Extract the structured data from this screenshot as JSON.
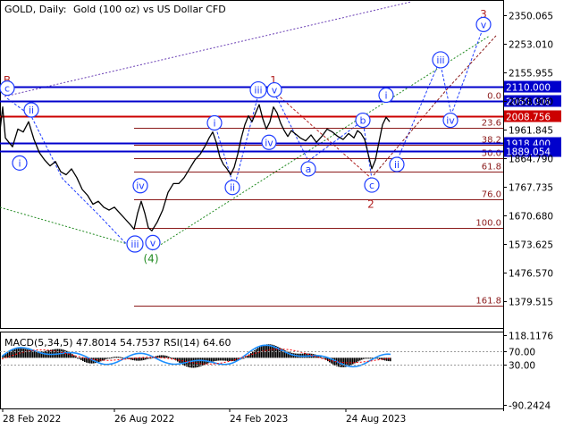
{
  "header": {
    "symbol": "GOLD, Daily:",
    "description": "Gold (100 oz) vs US Dollar CFD",
    "macd_label": "MACD(5,34,5) 47.8014 54.7537 RSI(14) 64.60"
  },
  "colors": {
    "background": "#ffffff",
    "price_line": "#000000",
    "level_blue": "#0000cc",
    "level_red": "#cc0000",
    "fib_line": "#8b1a1a",
    "wave_blue": "#1e3cff",
    "wave_red": "#b22222",
    "wave_green": "#228b22",
    "macd_hist": "#000000",
    "rsi_line": "#1e90ff",
    "signal_line": "#ff0000"
  },
  "chart_data": {
    "type": "line",
    "title": "GOLD, Daily: Gold (100 oz) vs US Dollar CFD",
    "ylim": [
      1290,
      2400
    ],
    "y_ticks": [
      "2350.065",
      "2253.010",
      "2155.955",
      "2058.900",
      "1961.845",
      "1864.790",
      "1767.735",
      "1670.680",
      "1573.625",
      "1476.570",
      "1379.515"
    ],
    "y_tick_values": [
      2350.065,
      2253.01,
      2155.955,
      2058.9,
      1961.845,
      1864.79,
      1767.735,
      1670.68,
      1573.625,
      1476.57,
      1379.515
    ],
    "x_ticks": [
      "28 Feb 2022",
      "26 Aug 2022",
      "24 Feb 2023",
      "24 Aug 2023"
    ],
    "price_series": [
      {
        "i": 0,
        "v": 1960
      },
      {
        "i": 3,
        "v": 2040
      },
      {
        "i": 6,
        "v": 1935
      },
      {
        "i": 10,
        "v": 1920
      },
      {
        "i": 14,
        "v": 1905
      },
      {
        "i": 20,
        "v": 1965
      },
      {
        "i": 26,
        "v": 1955
      },
      {
        "i": 32,
        "v": 1990
      },
      {
        "i": 38,
        "v": 1930
      },
      {
        "i": 44,
        "v": 1885
      },
      {
        "i": 50,
        "v": 1860
      },
      {
        "i": 56,
        "v": 1840
      },
      {
        "i": 62,
        "v": 1855
      },
      {
        "i": 68,
        "v": 1820
      },
      {
        "i": 74,
        "v": 1810
      },
      {
        "i": 80,
        "v": 1830
      },
      {
        "i": 86,
        "v": 1800
      },
      {
        "i": 92,
        "v": 1760
      },
      {
        "i": 98,
        "v": 1740
      },
      {
        "i": 104,
        "v": 1710
      },
      {
        "i": 110,
        "v": 1720
      },
      {
        "i": 116,
        "v": 1700
      },
      {
        "i": 122,
        "v": 1690
      },
      {
        "i": 128,
        "v": 1700
      },
      {
        "i": 134,
        "v": 1680
      },
      {
        "i": 140,
        "v": 1660
      },
      {
        "i": 146,
        "v": 1640
      },
      {
        "i": 150,
        "v": 1625
      },
      {
        "i": 154,
        "v": 1680
      },
      {
        "i": 158,
        "v": 1720
      },
      {
        "i": 162,
        "v": 1680
      },
      {
        "i": 166,
        "v": 1630
      },
      {
        "i": 170,
        "v": 1620
      },
      {
        "i": 176,
        "v": 1650
      },
      {
        "i": 182,
        "v": 1690
      },
      {
        "i": 188,
        "v": 1750
      },
      {
        "i": 194,
        "v": 1780
      },
      {
        "i": 200,
        "v": 1780
      },
      {
        "i": 206,
        "v": 1800
      },
      {
        "i": 212,
        "v": 1830
      },
      {
        "i": 218,
        "v": 1860
      },
      {
        "i": 224,
        "v": 1880
      },
      {
        "i": 230,
        "v": 1910
      },
      {
        "i": 234,
        "v": 1935
      },
      {
        "i": 238,
        "v": 1955
      },
      {
        "i": 242,
        "v": 1920
      },
      {
        "i": 246,
        "v": 1870
      },
      {
        "i": 250,
        "v": 1845
      },
      {
        "i": 254,
        "v": 1830
      },
      {
        "i": 258,
        "v": 1810
      },
      {
        "i": 262,
        "v": 1835
      },
      {
        "i": 266,
        "v": 1880
      },
      {
        "i": 270,
        "v": 1935
      },
      {
        "i": 274,
        "v": 1980
      },
      {
        "i": 278,
        "v": 2010
      },
      {
        "i": 282,
        "v": 1990
      },
      {
        "i": 286,
        "v": 2020
      },
      {
        "i": 290,
        "v": 2048
      },
      {
        "i": 294,
        "v": 2000
      },
      {
        "i": 298,
        "v": 1965
      },
      {
        "i": 302,
        "v": 1990
      },
      {
        "i": 306,
        "v": 2040
      },
      {
        "i": 310,
        "v": 2020
      },
      {
        "i": 314,
        "v": 1985
      },
      {
        "i": 318,
        "v": 1960
      },
      {
        "i": 322,
        "v": 1940
      },
      {
        "i": 326,
        "v": 1960
      },
      {
        "i": 330,
        "v": 1950
      },
      {
        "i": 336,
        "v": 1935
      },
      {
        "i": 342,
        "v": 1925
      },
      {
        "i": 348,
        "v": 1945
      },
      {
        "i": 354,
        "v": 1920
      },
      {
        "i": 360,
        "v": 1940
      },
      {
        "i": 366,
        "v": 1965
      },
      {
        "i": 372,
        "v": 1955
      },
      {
        "i": 378,
        "v": 1940
      },
      {
        "i": 384,
        "v": 1930
      },
      {
        "i": 390,
        "v": 1950
      },
      {
        "i": 396,
        "v": 1935
      },
      {
        "i": 400,
        "v": 1960
      },
      {
        "i": 404,
        "v": 1950
      },
      {
        "i": 408,
        "v": 1930
      },
      {
        "i": 412,
        "v": 1880
      },
      {
        "i": 416,
        "v": 1830
      },
      {
        "i": 420,
        "v": 1860
      },
      {
        "i": 424,
        "v": 1920
      },
      {
        "i": 428,
        "v": 1980
      },
      {
        "i": 432,
        "v": 2005
      },
      {
        "i": 436,
        "v": 1990
      }
    ],
    "horizontal_levels": [
      {
        "label": "2110.000",
        "value": 2110.0,
        "color": "blue"
      },
      {
        "label": "2060.006",
        "value": 2060.006,
        "color": "blue"
      },
      {
        "label": "2008.756",
        "value": 2008.756,
        "color": "red"
      },
      {
        "label": "1918.400",
        "value": 1918.4,
        "color": "blue"
      },
      {
        "label": "1889.054",
        "value": 1889.054,
        "color": "blue"
      }
    ],
    "fib_levels": [
      {
        "label": "0.0",
        "value": 2060
      },
      {
        "label": "23.6",
        "value": 1970
      },
      {
        "label": "38.2",
        "value": 1912
      },
      {
        "label": "50.0",
        "value": 1866
      },
      {
        "label": "61.8",
        "value": 1820
      },
      {
        "label": "76.0",
        "value": 1727
      },
      {
        "label": "100.0",
        "value": 1630
      },
      {
        "label": "161.8",
        "value": 1365
      }
    ],
    "wave_labels": [
      {
        "text": "B",
        "x": 8,
        "y": 2130,
        "style": "red"
      },
      {
        "text": "c",
        "x": 8,
        "y": 2104,
        "style": "blue-circle"
      },
      {
        "text": "ii",
        "x": 35,
        "y": 2030,
        "style": "blue-circle"
      },
      {
        "text": "i",
        "x": 22,
        "y": 1850,
        "style": "blue-circle"
      },
      {
        "text": "iv",
        "x": 157,
        "y": 1773,
        "style": "blue-circle"
      },
      {
        "text": "iii",
        "x": 151,
        "y": 1575,
        "style": "blue-circle"
      },
      {
        "text": "v",
        "x": 171,
        "y": 1580,
        "style": "blue-circle"
      },
      {
        "text": "(4)",
        "x": 169,
        "y": 1525,
        "style": "green"
      },
      {
        "text": "i",
        "x": 240,
        "y": 1986,
        "style": "blue-circle"
      },
      {
        "text": "ii",
        "x": 260,
        "y": 1767,
        "style": "blue-circle"
      },
      {
        "text": "1",
        "x": 306,
        "y": 2130,
        "style": "red"
      },
      {
        "text": "iii",
        "x": 289,
        "y": 2098,
        "style": "blue-circle"
      },
      {
        "text": "v",
        "x": 307,
        "y": 2098,
        "style": "blue-circle"
      },
      {
        "text": "iv",
        "x": 301,
        "y": 1920,
        "style": "blue-circle"
      },
      {
        "text": "a",
        "x": 345,
        "y": 1830,
        "style": "blue-circle"
      },
      {
        "text": "b",
        "x": 406,
        "y": 1995,
        "style": "blue-circle"
      },
      {
        "text": "c",
        "x": 416,
        "y": 1775,
        "style": "blue-circle"
      },
      {
        "text": "2",
        "x": 415,
        "y": 1710,
        "style": "red"
      },
      {
        "text": "i",
        "x": 432,
        "y": 2080,
        "style": "blue-circle"
      },
      {
        "text": "ii",
        "x": 444,
        "y": 1845,
        "style": "blue-circle"
      },
      {
        "text": "iii",
        "x": 493,
        "y": 2200,
        "style": "blue-circle"
      },
      {
        "text": "iv",
        "x": 504,
        "y": 1995,
        "style": "blue-circle"
      },
      {
        "text": "3",
        "x": 541,
        "y": 2355,
        "style": "red"
      },
      {
        "text": "v",
        "x": 541,
        "y": 2320,
        "style": "blue-circle"
      }
    ],
    "indicator": {
      "y_ticks": [
        "118.1176",
        "70.00",
        "30.00",
        "-90.2424"
      ],
      "y_tick_values": [
        118.1176,
        70,
        30,
        -90.2424
      ],
      "ylim": [
        -100,
        125
      ]
    }
  }
}
